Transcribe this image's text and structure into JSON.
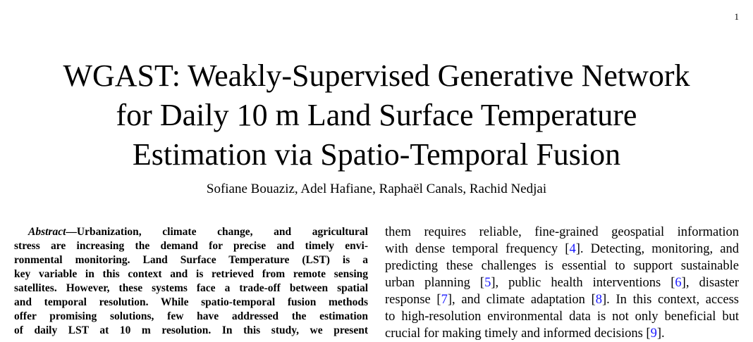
{
  "page_number": "1",
  "title_lines": [
    "WGAST: Weakly-Supervised Generative Network",
    "for Daily 10 m Land Surface Temperature",
    "Estimation via Spatio-Temporal Fusion"
  ],
  "authors": "Sofiane Bouaziz, Adel Hafiane, Raphaël Canals, Rachid Nedjai",
  "abstract": {
    "label": "Abstract",
    "lines": [
      "—Urbanization, climate change, and agricultural",
      "stress are increasing the demand for precise and timely envi-",
      "ronmental monitoring. Land Surface Temperature (LST) is a",
      "key variable in this context and is retrieved from remote sensing",
      "satellites. However, these systems face a trade-off between spatial",
      "and temporal resolution. While spatio-temporal fusion methods",
      "offer promising solutions, few have addressed the estimation",
      "of daily LST at 10 m resolution. In this study, we present"
    ]
  },
  "body": {
    "line1": "them requires reliable, fine-grained geospatial information",
    "line2_pre": "with dense temporal frequency [",
    "cite4": "4",
    "line2_post": "]. Detecting, monitoring, and",
    "line3": "predicting these challenges is essential to support sustainable",
    "line4_pre": "urban planning [",
    "cite5": "5",
    "line4_mid": "], public health interventions [",
    "cite6": "6",
    "line4_post": "], disaster",
    "line5_pre": "response [",
    "cite7": "7",
    "line5_mid": "], and climate adaptation [",
    "cite8": "8",
    "line5_post": "]. In this context, access",
    "line6": "to high-resolution environmental data is not only beneficial but",
    "line7_pre": "crucial for making timely and informed decisions [",
    "cite9": "9",
    "line7_post": "]."
  }
}
